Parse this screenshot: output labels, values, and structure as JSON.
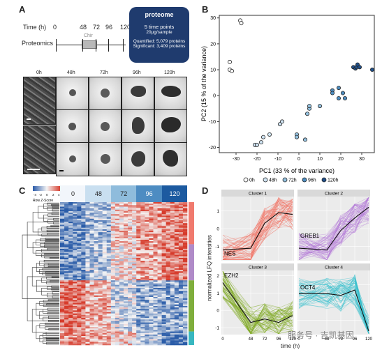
{
  "panels": {
    "a": "A",
    "b": "B",
    "c": "C",
    "d": "D"
  },
  "panelA": {
    "time_label": "Time (h)",
    "time_points": [
      "0",
      "48",
      "72",
      "96",
      "120"
    ],
    "proteomics_label": "Proteomics",
    "chir_label": "Chir",
    "box_title": "proteome",
    "box_line1": "5 time points",
    "box_line2": "20µg/sample",
    "box_line3": "Quantified: 5,079 proteins",
    "box_line4": "Significant: 3,409 proteins",
    "column_headers": [
      "0h",
      "48h",
      "72h",
      "96h",
      "120h"
    ]
  },
  "panelB": {
    "colors": {
      "0h": "#ffffff",
      "48h": "#cfe3f2",
      "72h": "#93c1df",
      "96h": "#4d8cbf",
      "120h": "#21508a"
    }
  },
  "panelC": {
    "key_title": "Row Z-Score",
    "key_ticks": [
      "-4",
      "-2",
      "0",
      "2",
      "4"
    ],
    "columns": [
      "0",
      "48",
      "72",
      "96",
      "120"
    ],
    "column_colors": [
      "#f2f6fb",
      "#c9dff0",
      "#8fbcdc",
      "#4d8cc2",
      "#1c5aa0"
    ],
    "side_bar_colors": [
      "#f07a6e",
      "#b08bc8",
      "#7fae3c",
      "#38b7c0"
    ]
  },
  "panelD": {
    "ylabel": "normalized LFQ intensities",
    "xlabel": "time (h)",
    "facets": [
      {
        "title": "Cluster 1",
        "gene": "NES",
        "color": "#f26b5b"
      },
      {
        "title": "Cluster 2",
        "gene": "GREB1",
        "color": "#b275d8"
      },
      {
        "title": "Cluster 3",
        "gene": "EZH2",
        "color": "#79a718"
      },
      {
        "title": "Cluster 4",
        "gene": "OCT4",
        "color": "#34bfcc"
      }
    ],
    "xticks": [
      "0",
      "48",
      "72",
      "96",
      "120"
    ],
    "yticks_top": [
      "1",
      "0",
      "-1"
    ],
    "yticks_bottom": [
      "2",
      "1",
      "0",
      "-1"
    ]
  },
  "watermark": "服务号 · 吉凯基因",
  "chart_data": {
    "type": "scatter",
    "title": "",
    "xlabel": "PC1 (33 % of the variance)",
    "ylabel": "PC2 (15 % of the variance)",
    "xlim": [
      -38,
      36
    ],
    "ylim": [
      -22,
      31
    ],
    "xticks": [
      -30,
      -20,
      -10,
      0,
      10,
      20,
      30
    ],
    "yticks": [
      -20,
      -10,
      0,
      10,
      20,
      30
    ],
    "legend_position": "bottom",
    "series": [
      {
        "name": "0h",
        "points": [
          [
            -33,
            13
          ],
          [
            -33,
            10
          ],
          [
            -32,
            9.5
          ],
          [
            -28,
            29
          ],
          [
            -27.5,
            28
          ]
        ]
      },
      {
        "name": "48h",
        "points": [
          [
            -21,
            -19
          ],
          [
            -20,
            -19
          ],
          [
            -18,
            -18
          ],
          [
            -17,
            -16
          ],
          [
            -14,
            -15
          ],
          [
            -9,
            -11
          ],
          [
            -8,
            -10
          ]
        ]
      },
      {
        "name": "72h",
        "points": [
          [
            -1,
            -15
          ],
          [
            -1,
            -16
          ],
          [
            3,
            -17
          ],
          [
            4,
            -7
          ],
          [
            5,
            -5
          ],
          [
            5,
            -4
          ],
          [
            10,
            -4
          ]
        ]
      },
      {
        "name": "96h",
        "points": [
          [
            16,
            2
          ],
          [
            16,
            1
          ],
          [
            19,
            3
          ],
          [
            19,
            -1
          ],
          [
            21,
            1
          ],
          [
            22,
            -1
          ]
        ]
      },
      {
        "name": "120h",
        "points": [
          [
            26,
            11
          ],
          [
            27,
            10.5
          ],
          [
            27.5,
            11
          ],
          [
            28,
            12
          ],
          [
            29,
            11
          ],
          [
            35,
            10
          ]
        ]
      }
    ]
  }
}
